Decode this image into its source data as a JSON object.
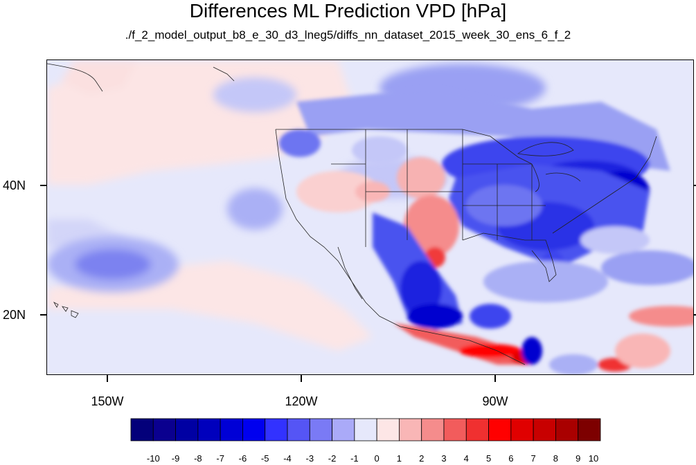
{
  "title": "Differences ML Prediction VPD [hPa]",
  "subtitle": "./f_2_model_output_b8_e_30_d3_lneg5/diffs_nn_dataset_2015_week_30_ens_6_f_2",
  "map": {
    "extent_lon": [
      -160,
      -60
    ],
    "extent_lat": [
      10,
      58
    ],
    "lat_labels": [
      "40N",
      "20N"
    ],
    "lon_labels": [
      "150W",
      "120W",
      "90W"
    ],
    "background_color": "#e6e8fb"
  },
  "colorbar": {
    "labels": [
      "-10",
      "-9",
      "-8",
      "-7",
      "-6",
      "-5",
      "-4",
      "-3",
      "-2",
      "-1",
      "0",
      "1",
      "2",
      "3",
      "4",
      "5",
      "6",
      "7",
      "8",
      "9",
      "10"
    ],
    "colors": [
      "#03007a",
      "#0a008f",
      "#0000a3",
      "#0000bd",
      "#0000d6",
      "#0000ef",
      "#3232ff",
      "#5555f5",
      "#7a7af5",
      "#aaaaf8",
      "#e6e8fb",
      "#fde6e6",
      "#f9b6b6",
      "#f58c8c",
      "#f25c5c",
      "#f03030",
      "#ff0000",
      "#e00000",
      "#c80000",
      "#a90000",
      "#7d0000"
    ]
  }
}
